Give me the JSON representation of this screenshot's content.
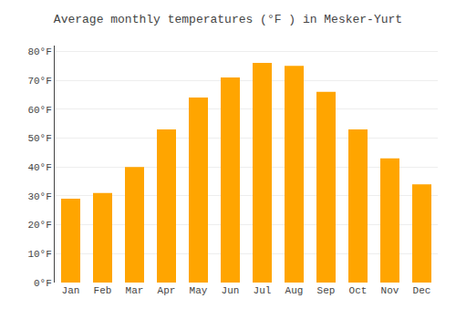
{
  "chart_data": {
    "type": "bar",
    "title": "Average monthly temperatures (°F ) in Mesker-Yurt",
    "categories": [
      "Jan",
      "Feb",
      "Mar",
      "Apr",
      "May",
      "Jun",
      "Jul",
      "Aug",
      "Sep",
      "Oct",
      "Nov",
      "Dec"
    ],
    "values": [
      29,
      31,
      40,
      53,
      64,
      71,
      76,
      75,
      66,
      53,
      43,
      34
    ],
    "color": "#FFA500",
    "ylim": [
      0,
      82
    ],
    "yticks": [
      {
        "value": 0,
        "label": "0°F"
      },
      {
        "value": 10,
        "label": "10°F"
      },
      {
        "value": 20,
        "label": "20°F"
      },
      {
        "value": 30,
        "label": "30°F"
      },
      {
        "value": 40,
        "label": "40°F"
      },
      {
        "value": 50,
        "label": "50°F"
      },
      {
        "value": 60,
        "label": "60°F"
      },
      {
        "value": 70,
        "label": "70°F"
      },
      {
        "value": 80,
        "label": "80°F"
      }
    ],
    "grid": true
  }
}
